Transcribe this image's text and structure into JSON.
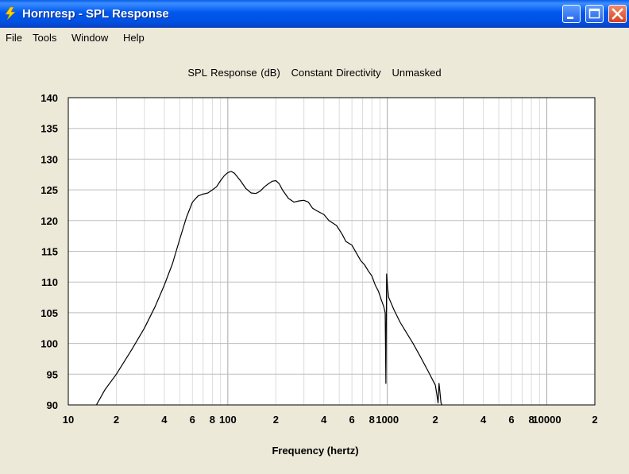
{
  "window": {
    "title": "Hornresp - SPL Response",
    "accent": "#0054e3",
    "controls": [
      "minimize-icon",
      "maximize-icon",
      "close-icon"
    ]
  },
  "menu": [
    "File",
    "Tools",
    "Window",
    "Help"
  ],
  "chart_title": "SPL Response (dB)   Constant Directivity   Unmasked",
  "chart_data": {
    "type": "line",
    "title": "SPL Response (dB)   Constant Directivity   Unmasked",
    "xlabel": "Frequency (hertz)",
    "ylabel": "",
    "x_scale": "log",
    "xlim": [
      10,
      20000
    ],
    "ylim": [
      90,
      140
    ],
    "grid": true,
    "y_ticks": [
      "140",
      "135",
      "130",
      "125",
      "120",
      "115",
      "110",
      "105",
      "100",
      "95",
      "90"
    ],
    "x_ticks": [
      {
        "value": 10,
        "label": "10"
      },
      {
        "value": 20,
        "label": "2"
      },
      {
        "value": 40,
        "label": "4"
      },
      {
        "value": 60,
        "label": "6"
      },
      {
        "value": 80,
        "label": "8"
      },
      {
        "value": 100,
        "label": "100"
      },
      {
        "value": 200,
        "label": "2"
      },
      {
        "value": 400,
        "label": "4"
      },
      {
        "value": 600,
        "label": "6"
      },
      {
        "value": 800,
        "label": "8"
      },
      {
        "value": 1000,
        "label": "1000"
      },
      {
        "value": 2000,
        "label": "2"
      },
      {
        "value": 4000,
        "label": "4"
      },
      {
        "value": 6000,
        "label": "6"
      },
      {
        "value": 8000,
        "label": "8"
      },
      {
        "value": 10000,
        "label": "10000"
      },
      {
        "value": 20000,
        "label": "2"
      }
    ],
    "series": [
      {
        "color": "#000000",
        "points": [
          [
            15,
            90
          ],
          [
            17,
            92.5
          ],
          [
            20,
            95
          ],
          [
            25,
            99
          ],
          [
            30,
            102.5
          ],
          [
            35,
            106
          ],
          [
            40,
            109.5
          ],
          [
            45,
            113
          ],
          [
            50,
            117
          ],
          [
            55,
            120.5
          ],
          [
            60,
            123
          ],
          [
            65,
            124
          ],
          [
            70,
            124.3
          ],
          [
            75,
            124.5
          ],
          [
            80,
            125
          ],
          [
            85,
            125.5
          ],
          [
            90,
            126.5
          ],
          [
            95,
            127.3
          ],
          [
            100,
            127.8
          ],
          [
            105,
            128
          ],
          [
            110,
            127.7
          ],
          [
            120,
            126.5
          ],
          [
            130,
            125.2
          ],
          [
            140,
            124.5
          ],
          [
            150,
            124.4
          ],
          [
            160,
            124.8
          ],
          [
            170,
            125.5
          ],
          [
            180,
            126
          ],
          [
            190,
            126.4
          ],
          [
            200,
            126.5
          ],
          [
            210,
            126
          ],
          [
            220,
            125
          ],
          [
            240,
            123.6
          ],
          [
            260,
            123
          ],
          [
            280,
            123.2
          ],
          [
            300,
            123.3
          ],
          [
            320,
            123
          ],
          [
            340,
            122
          ],
          [
            360,
            121.6
          ],
          [
            400,
            121
          ],
          [
            430,
            120
          ],
          [
            480,
            119.2
          ],
          [
            520,
            117.8
          ],
          [
            550,
            116.6
          ],
          [
            600,
            116
          ],
          [
            640,
            114.7
          ],
          [
            680,
            113.5
          ],
          [
            720,
            112.8
          ],
          [
            760,
            111.8
          ],
          [
            800,
            111
          ],
          [
            840,
            109.5
          ],
          [
            880,
            108.5
          ],
          [
            920,
            107
          ],
          [
            950,
            106
          ],
          [
            970,
            105
          ],
          [
            980,
            93.5
          ],
          [
            990,
            111.3
          ],
          [
            1005,
            109
          ],
          [
            1020,
            107.5
          ],
          [
            1100,
            105.5
          ],
          [
            1200,
            103.5
          ],
          [
            1300,
            102
          ],
          [
            1450,
            100
          ],
          [
            1600,
            98
          ],
          [
            1800,
            95.5
          ],
          [
            2000,
            93.2
          ],
          [
            2050,
            91.5
          ],
          [
            2080,
            90.3
          ],
          [
            2110,
            93.5
          ],
          [
            2130,
            92.5
          ],
          [
            2170,
            90.3
          ],
          [
            2200,
            90
          ]
        ]
      }
    ]
  }
}
